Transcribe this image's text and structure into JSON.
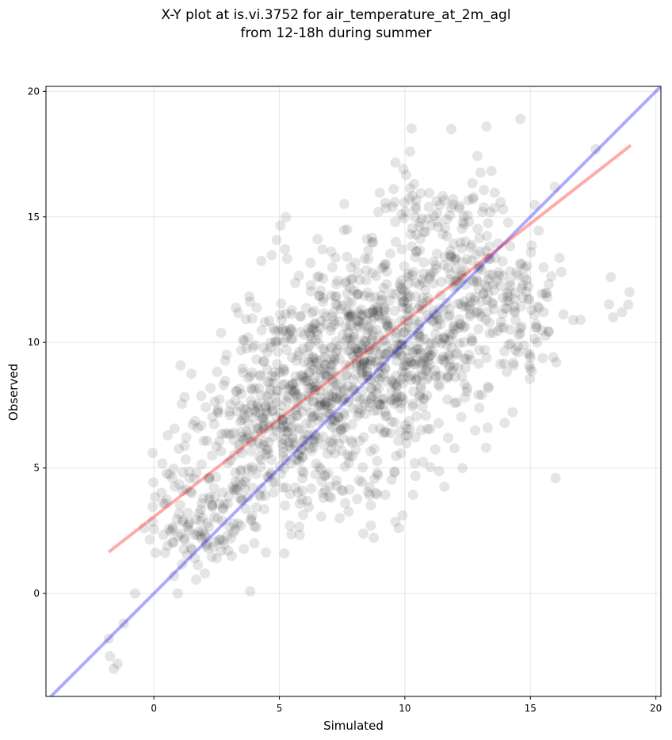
{
  "title_line1": "X-Y plot at is.vi.3752 for air_temperature_at_2m_agl",
  "title_line2": "from 12-18h during summer",
  "chart_data": {
    "type": "scatter",
    "xlabel": "Simulated",
    "ylabel": "Observed",
    "xlim": [
      -4.3,
      20.2
    ],
    "ylim": [
      -4.1,
      20.2
    ],
    "xticks": [
      0,
      5,
      10,
      15,
      20
    ],
    "yticks": [
      0,
      5,
      10,
      15,
      20
    ],
    "grid": true,
    "colors": {
      "points": "#000000",
      "one_to_one": "#0000ff",
      "fit": "#ff0000"
    },
    "one_to_one_line": {
      "x": [
        -4.3,
        20.2
      ],
      "y": [
        -4.3,
        20.2
      ]
    },
    "fit_line": {
      "x": [
        -1.8,
        19.0
      ],
      "y": [
        1.65,
        17.85
      ]
    },
    "notable_points": [
      {
        "x": -1.8,
        "y": -1.8
      },
      {
        "x": -1.75,
        "y": -2.5
      },
      {
        "x": -1.6,
        "y": -3.0
      },
      {
        "x": -1.45,
        "y": -2.8
      },
      {
        "x": -1.2,
        "y": -1.2
      },
      {
        "x": -0.75,
        "y": 0.0
      },
      {
        "x": 0.95,
        "y": 0.0
      },
      {
        "x": -0.05,
        "y": 5.6
      },
      {
        "x": 0.55,
        "y": 6.3
      },
      {
        "x": 11.85,
        "y": 18.5
      },
      {
        "x": 13.25,
        "y": 18.6
      },
      {
        "x": 14.6,
        "y": 18.9
      },
      {
        "x": 17.6,
        "y": 17.7
      },
      {
        "x": 18.2,
        "y": 12.6
      },
      {
        "x": 18.3,
        "y": 11.0
      },
      {
        "x": 18.65,
        "y": 11.2
      },
      {
        "x": 18.9,
        "y": 11.5
      },
      {
        "x": 18.95,
        "y": 12.0
      },
      {
        "x": 17.0,
        "y": 10.9
      },
      {
        "x": 15.0,
        "y": 9.4
      },
      {
        "x": 14.5,
        "y": 9.6
      },
      {
        "x": 12.8,
        "y": 6.5
      },
      {
        "x": 13.3,
        "y": 6.6
      },
      {
        "x": 8.9,
        "y": 4.8
      },
      {
        "x": 7.4,
        "y": 3.0
      },
      {
        "x": 5.2,
        "y": 1.6
      },
      {
        "x": 4.0,
        "y": 2.0
      },
      {
        "x": 3.1,
        "y": 1.5
      },
      {
        "x": 2.5,
        "y": 1.4
      },
      {
        "x": 0.8,
        "y": 0.7
      }
    ],
    "point_clouds": [
      {
        "x": 8.0,
        "y": 9.3,
        "sx": 2.2,
        "sy": 1.9,
        "n": 650
      },
      {
        "x": 4.6,
        "y": 6.3,
        "sx": 1.6,
        "sy": 1.6,
        "n": 280
      },
      {
        "x": 11.6,
        "y": 12.6,
        "sx": 1.9,
        "sy": 2.2,
        "n": 330
      },
      {
        "x": 1.6,
        "y": 3.0,
        "sx": 1.1,
        "sy": 1.0,
        "n": 120
      },
      {
        "x": 13.9,
        "y": 11.2,
        "sx": 1.5,
        "sy": 1.8,
        "n": 90
      },
      {
        "x": 7.5,
        "y": 4.8,
        "sx": 2.2,
        "sy": 1.3,
        "n": 80
      }
    ]
  }
}
